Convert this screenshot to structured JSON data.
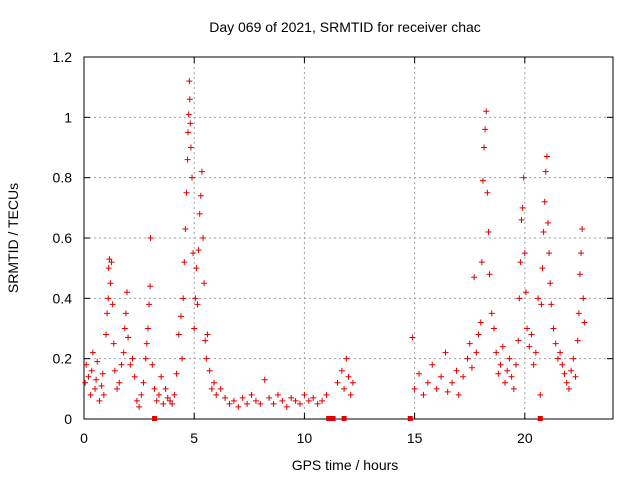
{
  "chart_data": {
    "type": "scatter",
    "title": "Day 069 of 2021, SRMTID for receiver chac",
    "xlabel": "GPS time / hours",
    "ylabel": "SRMTID / TECUs",
    "xlim": [
      0,
      24
    ],
    "ylim": [
      0,
      1.2
    ],
    "x_ticks": [
      0,
      5,
      10,
      15,
      20
    ],
    "x_tick_labels": [
      "0",
      "5",
      "10",
      "15",
      "20"
    ],
    "y_ticks": [
      0,
      0.2,
      0.4,
      0.6,
      0.8,
      1,
      1.2
    ],
    "y_tick_labels": [
      "0",
      "0.2",
      "0.4",
      "0.6",
      "0.8",
      "1",
      "1.2"
    ],
    "grid": true,
    "legend": "none",
    "marker": "plus",
    "color": "#e00000",
    "zero_markers_x": [
      3.2,
      11.1,
      11.3,
      11.8,
      14.8,
      20.7
    ],
    "series": [
      {
        "name": "SRMTID",
        "points": [
          [
            0.05,
            0.12
          ],
          [
            0.1,
            0.18
          ],
          [
            0.2,
            0.14
          ],
          [
            0.3,
            0.08
          ],
          [
            0.35,
            0.16
          ],
          [
            0.4,
            0.22
          ],
          [
            0.5,
            0.1
          ],
          [
            0.55,
            0.13
          ],
          [
            0.6,
            0.19
          ],
          [
            0.7,
            0.06
          ],
          [
            0.8,
            0.11
          ],
          [
            0.85,
            0.15
          ],
          [
            0.9,
            0.08
          ],
          [
            1.0,
            0.28
          ],
          [
            1.05,
            0.35
          ],
          [
            1.1,
            0.4
          ],
          [
            1.12,
            0.5
          ],
          [
            1.15,
            0.53
          ],
          [
            1.2,
            0.45
          ],
          [
            1.25,
            0.52
          ],
          [
            1.3,
            0.38
          ],
          [
            1.35,
            0.25
          ],
          [
            1.4,
            0.16
          ],
          [
            1.5,
            0.1
          ],
          [
            1.6,
            0.12
          ],
          [
            1.7,
            0.18
          ],
          [
            1.8,
            0.22
          ],
          [
            1.85,
            0.3
          ],
          [
            1.9,
            0.35
          ],
          [
            1.95,
            0.42
          ],
          [
            2.0,
            0.27
          ],
          [
            2.1,
            0.18
          ],
          [
            2.2,
            0.2
          ],
          [
            2.3,
            0.14
          ],
          [
            2.4,
            0.06
          ],
          [
            2.5,
            0.04
          ],
          [
            2.6,
            0.08
          ],
          [
            2.7,
            0.12
          ],
          [
            2.8,
            0.2
          ],
          [
            2.85,
            0.25
          ],
          [
            2.9,
            0.3
          ],
          [
            2.95,
            0.38
          ],
          [
            3.0,
            0.44
          ],
          [
            3.02,
            0.6
          ],
          [
            3.1,
            0.18
          ],
          [
            3.2,
            0.1
          ],
          [
            3.3,
            0.06
          ],
          [
            3.4,
            0.08
          ],
          [
            3.5,
            0.14
          ],
          [
            3.6,
            0.05
          ],
          [
            3.7,
            0.1
          ],
          [
            3.8,
            0.07
          ],
          [
            3.9,
            0.06
          ],
          [
            4.0,
            0.05
          ],
          [
            4.1,
            0.08
          ],
          [
            4.2,
            0.15
          ],
          [
            4.3,
            0.28
          ],
          [
            4.4,
            0.34
          ],
          [
            4.45,
            0.2
          ],
          [
            4.5,
            0.4
          ],
          [
            4.55,
            0.52
          ],
          [
            4.6,
            0.63
          ],
          [
            4.65,
            0.75
          ],
          [
            4.7,
            0.86
          ],
          [
            4.72,
            0.95
          ],
          [
            4.75,
            1.01
          ],
          [
            4.78,
            1.12
          ],
          [
            4.8,
            1.06
          ],
          [
            4.82,
            0.98
          ],
          [
            4.85,
            0.9
          ],
          [
            4.9,
            0.8
          ],
          [
            4.95,
            0.55
          ],
          [
            5.0,
            0.3
          ],
          [
            5.05,
            0.4
          ],
          [
            5.1,
            0.5
          ],
          [
            5.15,
            0.38
          ],
          [
            5.2,
            0.56
          ],
          [
            5.25,
            0.68
          ],
          [
            5.3,
            0.74
          ],
          [
            5.35,
            0.82
          ],
          [
            5.4,
            0.6
          ],
          [
            5.45,
            0.45
          ],
          [
            5.5,
            0.26
          ],
          [
            5.55,
            0.2
          ],
          [
            5.6,
            0.28
          ],
          [
            5.7,
            0.16
          ],
          [
            5.8,
            0.1
          ],
          [
            5.9,
            0.12
          ],
          [
            6.0,
            0.08
          ],
          [
            6.2,
            0.1
          ],
          [
            6.4,
            0.07
          ],
          [
            6.6,
            0.05
          ],
          [
            6.8,
            0.06
          ],
          [
            7.0,
            0.04
          ],
          [
            7.2,
            0.07
          ],
          [
            7.4,
            0.05
          ],
          [
            7.6,
            0.08
          ],
          [
            7.8,
            0.06
          ],
          [
            8.0,
            0.05
          ],
          [
            8.2,
            0.13
          ],
          [
            8.4,
            0.07
          ],
          [
            8.6,
            0.05
          ],
          [
            8.8,
            0.08
          ],
          [
            9.0,
            0.06
          ],
          [
            9.2,
            0.04
          ],
          [
            9.4,
            0.07
          ],
          [
            9.6,
            0.06
          ],
          [
            9.8,
            0.05
          ],
          [
            10.0,
            0.08
          ],
          [
            10.2,
            0.06
          ],
          [
            10.4,
            0.07
          ],
          [
            10.6,
            0.05
          ],
          [
            10.8,
            0.06
          ],
          [
            11.0,
            0.08
          ],
          [
            11.5,
            0.12
          ],
          [
            11.7,
            0.16
          ],
          [
            11.8,
            0.1
          ],
          [
            11.9,
            0.2
          ],
          [
            12.0,
            0.14
          ],
          [
            12.1,
            0.08
          ],
          [
            12.2,
            0.12
          ],
          [
            14.9,
            0.27
          ],
          [
            15.0,
            0.1
          ],
          [
            15.2,
            0.15
          ],
          [
            15.4,
            0.08
          ],
          [
            15.6,
            0.12
          ],
          [
            15.8,
            0.18
          ],
          [
            16.0,
            0.1
          ],
          [
            16.2,
            0.14
          ],
          [
            16.4,
            0.22
          ],
          [
            16.5,
            0.09
          ],
          [
            16.7,
            0.12
          ],
          [
            16.9,
            0.16
          ],
          [
            17.0,
            0.08
          ],
          [
            17.2,
            0.14
          ],
          [
            17.4,
            0.2
          ],
          [
            17.5,
            0.25
          ],
          [
            17.6,
            0.17
          ],
          [
            17.7,
            0.47
          ],
          [
            17.8,
            0.22
          ],
          [
            17.9,
            0.28
          ],
          [
            18.0,
            0.32
          ],
          [
            18.05,
            0.52
          ],
          [
            18.1,
            0.79
          ],
          [
            18.15,
            0.9
          ],
          [
            18.2,
            0.96
          ],
          [
            18.25,
            1.02
          ],
          [
            18.3,
            0.75
          ],
          [
            18.35,
            0.62
          ],
          [
            18.4,
            0.48
          ],
          [
            18.5,
            0.35
          ],
          [
            18.6,
            0.3
          ],
          [
            18.7,
            0.22
          ],
          [
            18.8,
            0.15
          ],
          [
            18.9,
            0.18
          ],
          [
            19.0,
            0.24
          ],
          [
            19.1,
            0.12
          ],
          [
            19.2,
            0.16
          ],
          [
            19.3,
            0.2
          ],
          [
            19.4,
            0.14
          ],
          [
            19.5,
            0.1
          ],
          [
            19.6,
            0.18
          ],
          [
            19.7,
            0.26
          ],
          [
            19.75,
            0.4
          ],
          [
            19.8,
            0.52
          ],
          [
            19.85,
            0.66
          ],
          [
            19.9,
            0.7
          ],
          [
            19.95,
            0.8
          ],
          [
            20.0,
            0.55
          ],
          [
            20.05,
            0.42
          ],
          [
            20.1,
            0.3
          ],
          [
            20.2,
            0.24
          ],
          [
            20.3,
            0.28
          ],
          [
            20.4,
            0.18
          ],
          [
            20.5,
            0.22
          ],
          [
            20.6,
            0.4
          ],
          [
            20.7,
            0.08
          ],
          [
            20.75,
            0.38
          ],
          [
            20.8,
            0.5
          ],
          [
            20.85,
            0.62
          ],
          [
            20.9,
            0.72
          ],
          [
            20.95,
            0.82
          ],
          [
            21.0,
            0.87
          ],
          [
            21.05,
            0.65
          ],
          [
            21.1,
            0.55
          ],
          [
            21.15,
            0.45
          ],
          [
            21.2,
            0.38
          ],
          [
            21.3,
            0.3
          ],
          [
            21.4,
            0.25
          ],
          [
            21.5,
            0.2
          ],
          [
            21.6,
            0.22
          ],
          [
            21.7,
            0.18
          ],
          [
            21.8,
            0.15
          ],
          [
            21.9,
            0.12
          ],
          [
            22.0,
            0.1
          ],
          [
            22.1,
            0.16
          ],
          [
            22.2,
            0.2
          ],
          [
            22.3,
            0.14
          ],
          [
            22.4,
            0.26
          ],
          [
            22.45,
            0.35
          ],
          [
            22.5,
            0.48
          ],
          [
            22.55,
            0.55
          ],
          [
            22.6,
            0.63
          ],
          [
            22.65,
            0.4
          ],
          [
            22.7,
            0.32
          ]
        ]
      }
    ]
  }
}
